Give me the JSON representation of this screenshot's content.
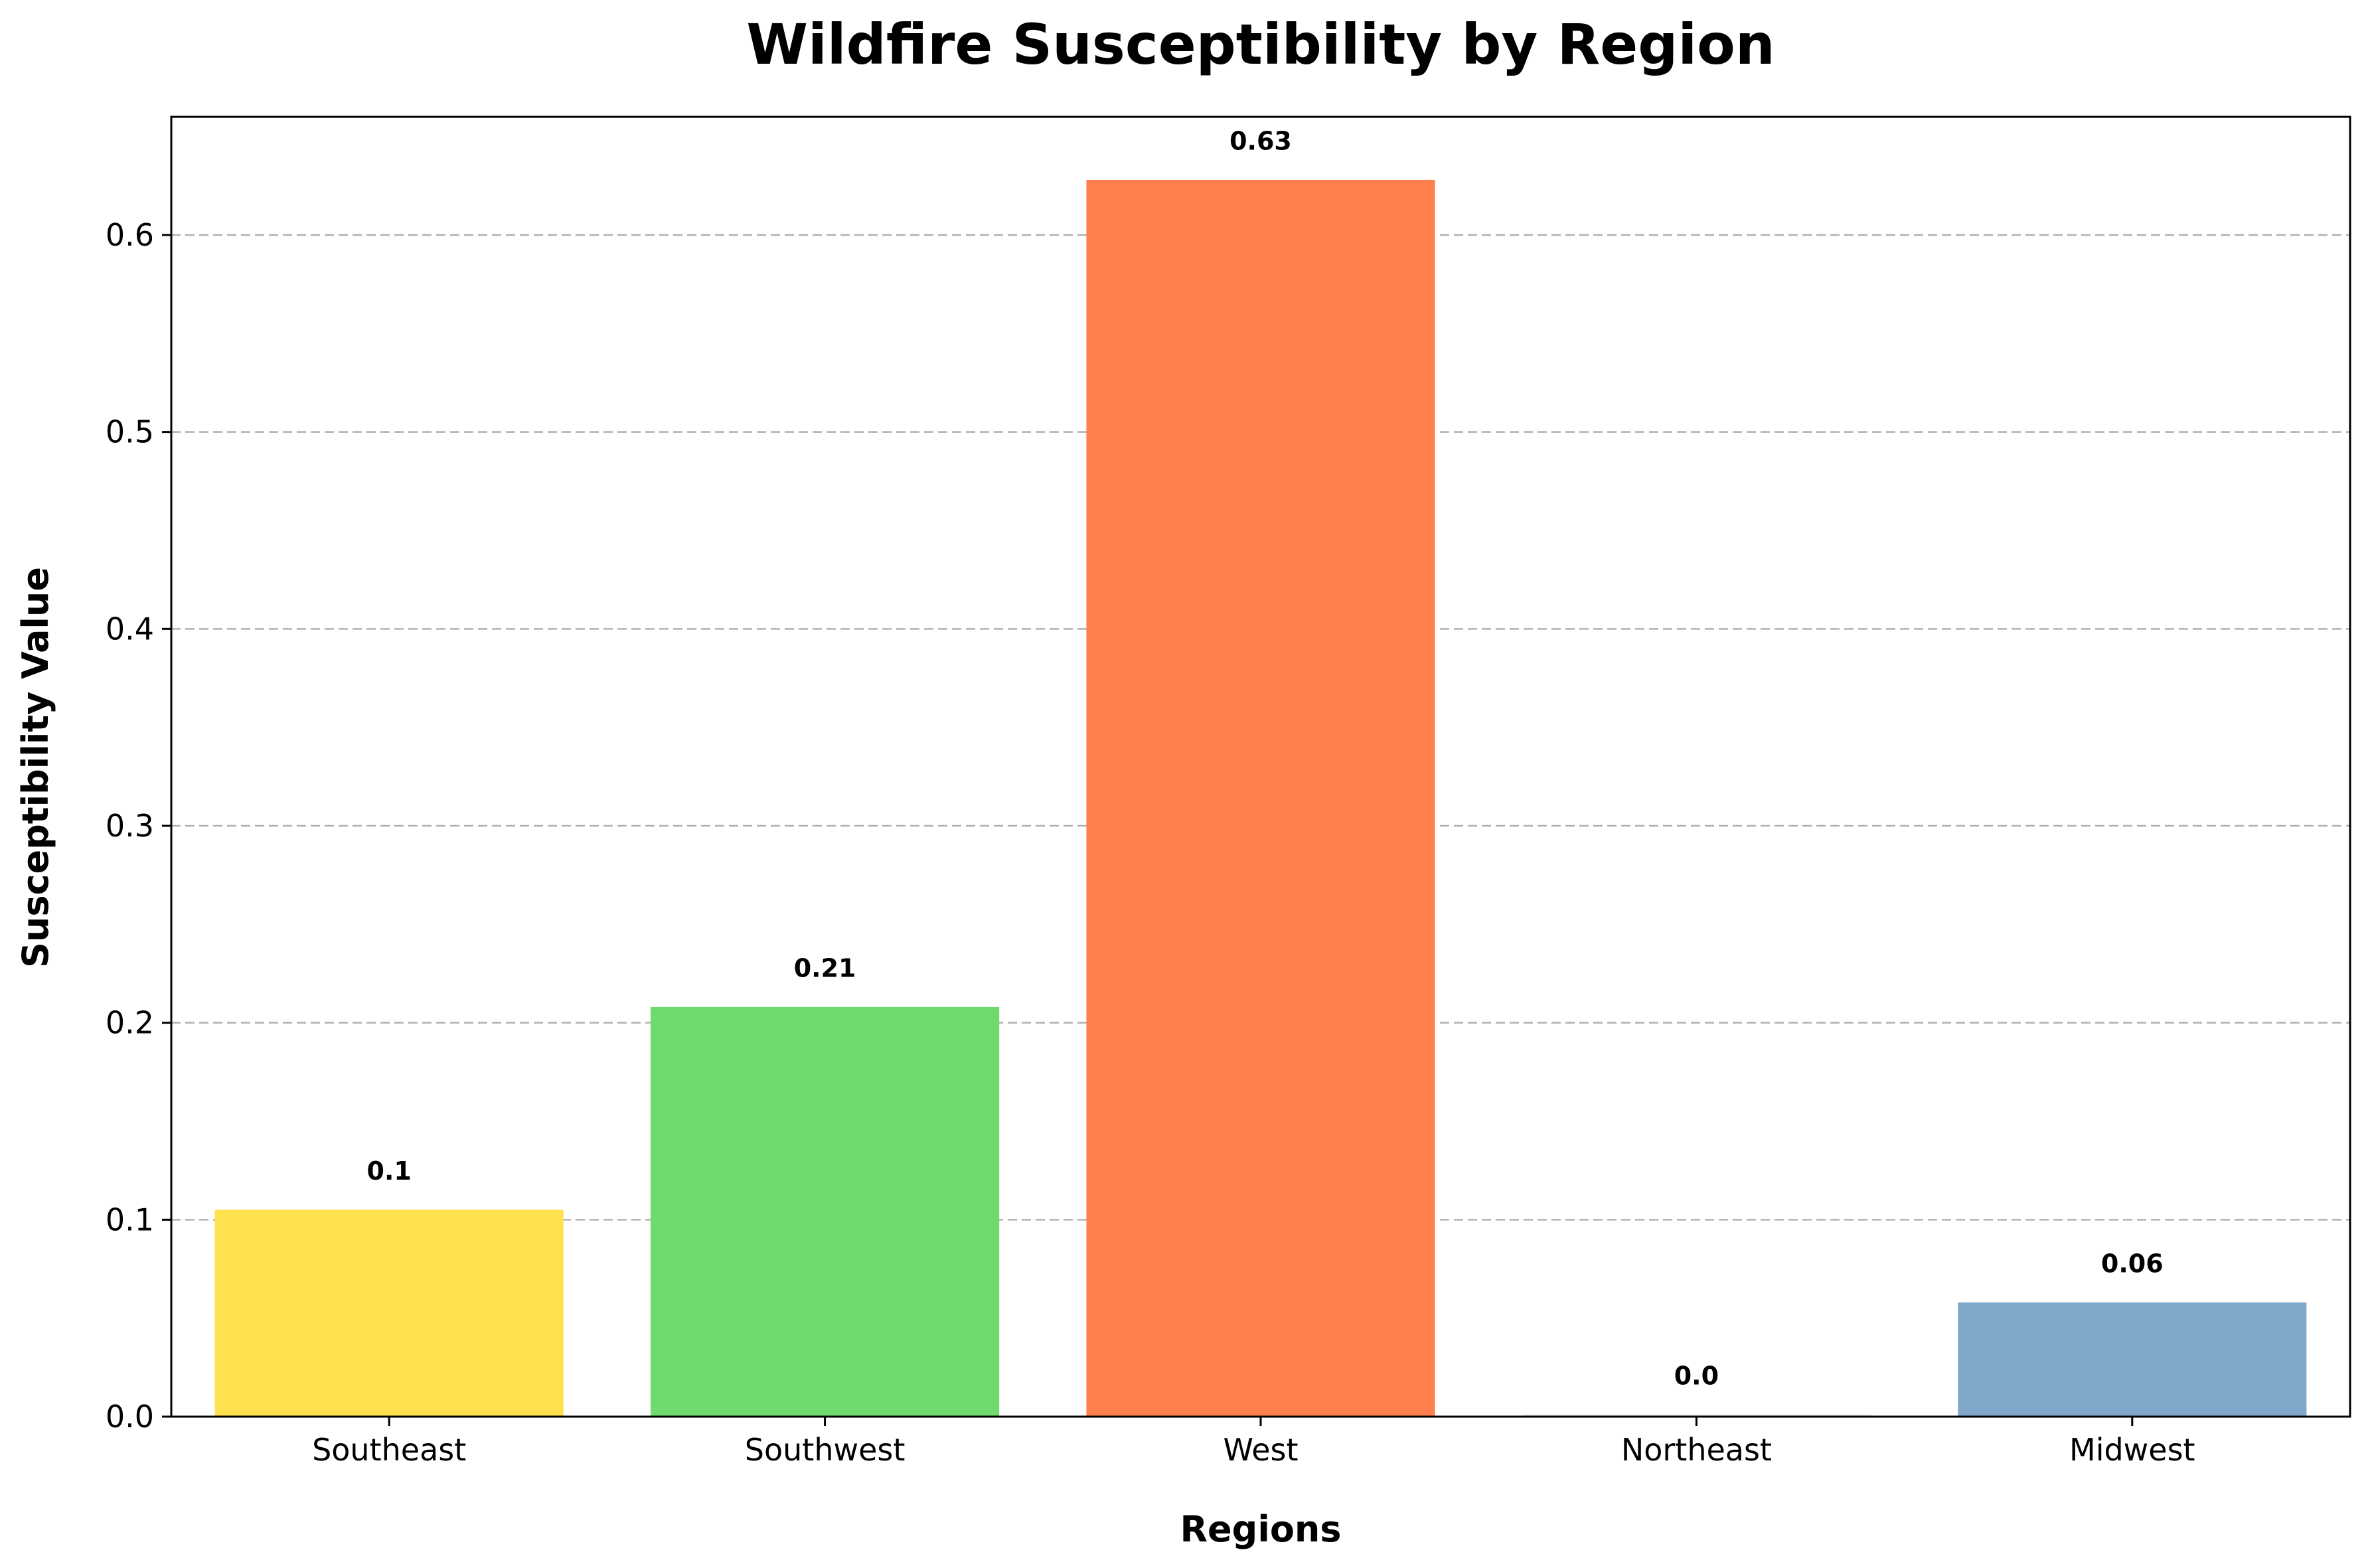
{
  "chart_data": {
    "type": "bar",
    "title": "Wildfire Susceptibility by Region",
    "xlabel": "Regions",
    "ylabel": "Susceptibility Value",
    "categories": [
      "Southeast",
      "Southwest",
      "West",
      "Northeast",
      "Midwest"
    ],
    "values": [
      0.105,
      0.208,
      0.628,
      0.001,
      0.058
    ],
    "data_labels": [
      "0.1",
      "0.21",
      "0.63",
      "0.0",
      "0.06"
    ],
    "colors": [
      "#FFE14D",
      "#6FDB6F",
      "#FF7F4F",
      "#E8E8E8",
      "#7FA8CB"
    ],
    "ylim": [
      0,
      0.66
    ],
    "yticks": [
      0.0,
      0.1,
      0.2,
      0.3,
      0.4,
      0.5,
      0.6
    ],
    "ytick_labels": [
      "0.0",
      "0.1",
      "0.2",
      "0.3",
      "0.4",
      "0.5",
      "0.6"
    ],
    "grid": "y-dashed",
    "legend": "none"
  }
}
